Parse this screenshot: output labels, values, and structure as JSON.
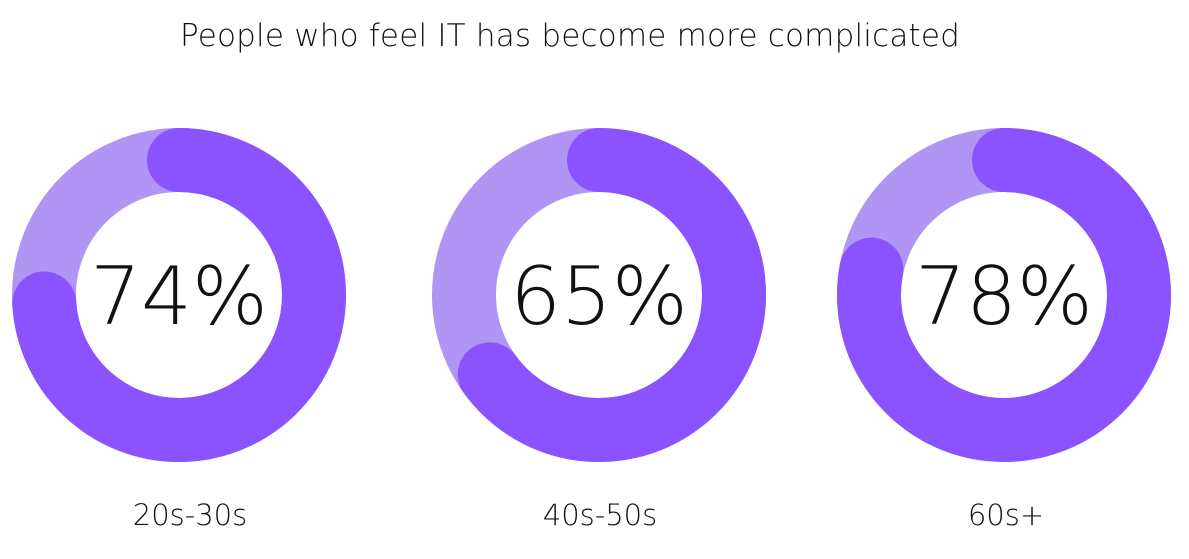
{
  "chart_data": {
    "type": "donut",
    "title": "People who feel IT has become more complicated",
    "unit": "%",
    "items": [
      {
        "label": "20s-30s",
        "value": 74,
        "display": "74%"
      },
      {
        "label": "40s-50s",
        "value": 65,
        "display": "65%"
      },
      {
        "label": "60s+",
        "value": 78,
        "display": "78%"
      }
    ],
    "colors": {
      "value_arc": "#8B53FF",
      "track": "#B095F4"
    }
  }
}
